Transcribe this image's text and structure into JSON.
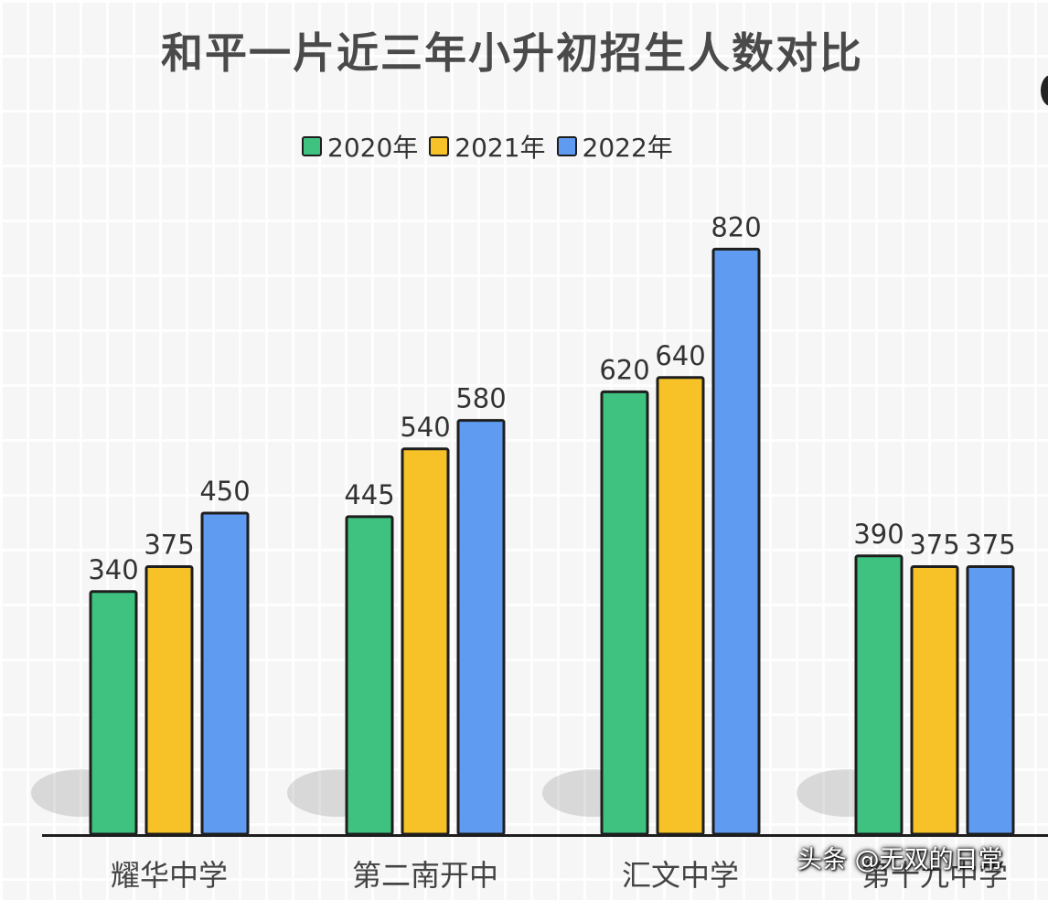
{
  "chart_data": {
    "type": "bar",
    "title": "和平一片近三年小升初招生人数对比",
    "categories": [
      "耀华中学",
      "第二南开中",
      "汇文中学",
      "第十九中学"
    ],
    "series": [
      {
        "name": "2020年",
        "color": "#3fc17f",
        "values": [
          340,
          445,
          620,
          390
        ]
      },
      {
        "name": "2021年",
        "color": "#f7c227",
        "values": [
          375,
          540,
          640,
          375
        ]
      },
      {
        "name": "2022年",
        "color": "#5f9bf0",
        "values": [
          450,
          580,
          820,
          375
        ]
      }
    ],
    "ylim": [
      0,
      900
    ],
    "grid": false,
    "legend": "top"
  },
  "watermark": "头条 @无双的日常"
}
